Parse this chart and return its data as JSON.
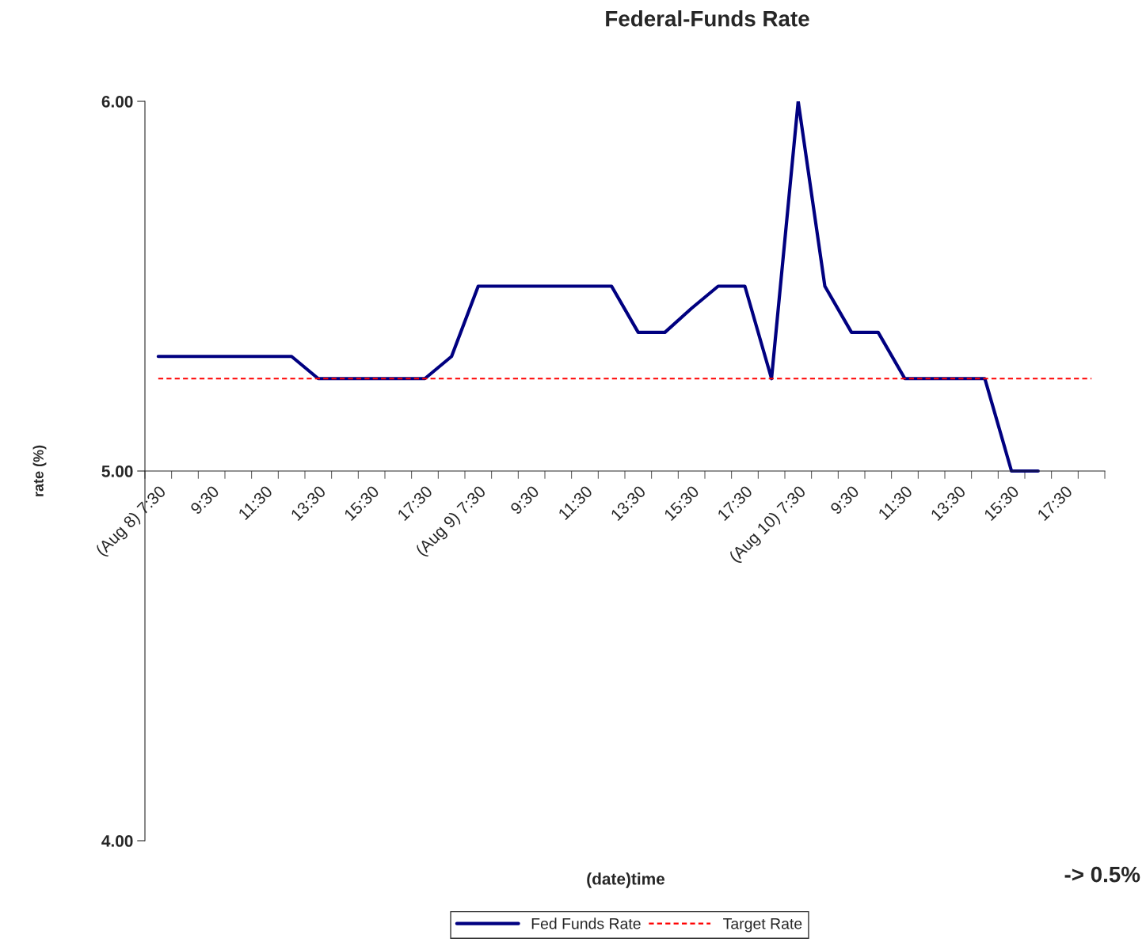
{
  "chart_data": {
    "type": "line",
    "title": "Federal-Funds Rate",
    "xlabel": "(date)time",
    "ylabel": "rate (%)",
    "categories": [
      "(Aug 8) 7:30",
      null,
      "9:30",
      null,
      "11:30",
      null,
      "13:30",
      null,
      "15:30",
      null,
      "17:30",
      null,
      "(Aug 9) 7:30",
      null,
      "9:30",
      null,
      "11:30",
      null,
      "13:30",
      null,
      "15:30",
      null,
      "17:30",
      null,
      "(Aug 10) 7:30",
      null,
      "9:30",
      null,
      "11:30",
      null,
      "13:30",
      null,
      "15:30",
      null,
      "17:30",
      null
    ],
    "series": [
      {
        "name": "Fed Funds Rate",
        "color": "#000080",
        "line_style": "solid",
        "values": [
          5.31,
          5.31,
          5.31,
          5.31,
          5.31,
          5.31,
          5.25,
          5.25,
          5.25,
          5.25,
          5.25,
          5.31,
          5.5,
          5.5,
          5.5,
          5.5,
          5.5,
          5.5,
          5.375,
          5.375,
          5.44,
          5.5,
          5.5,
          5.25,
          6.0,
          5.5,
          5.375,
          5.375,
          5.25,
          5.25,
          5.25,
          5.25,
          5.0,
          5.0,
          null,
          null
        ]
      },
      {
        "name": "Target Rate",
        "color": "#ff0000",
        "line_style": "dashed",
        "values": [
          5.25,
          5.25,
          5.25,
          5.25,
          5.25,
          5.25,
          5.25,
          5.25,
          5.25,
          5.25,
          5.25,
          5.25,
          5.25,
          5.25,
          5.25,
          5.25,
          5.25,
          5.25,
          5.25,
          5.25,
          5.25,
          5.25,
          5.25,
          5.25,
          5.25,
          5.25,
          5.25,
          5.25,
          5.25,
          5.25,
          5.25,
          5.25,
          5.25,
          5.25,
          5.25,
          5.25
        ]
      }
    ],
    "ylim": [
      4,
      6
    ],
    "yticks": [
      {
        "value": 4,
        "label": "4.00"
      },
      {
        "value": 5,
        "label": "5.00"
      },
      {
        "value": 6,
        "label": "6.00"
      }
    ],
    "annotations": [
      "-> 0.5%"
    ],
    "grid": false,
    "legend": "bottom",
    "marker": "none"
  }
}
